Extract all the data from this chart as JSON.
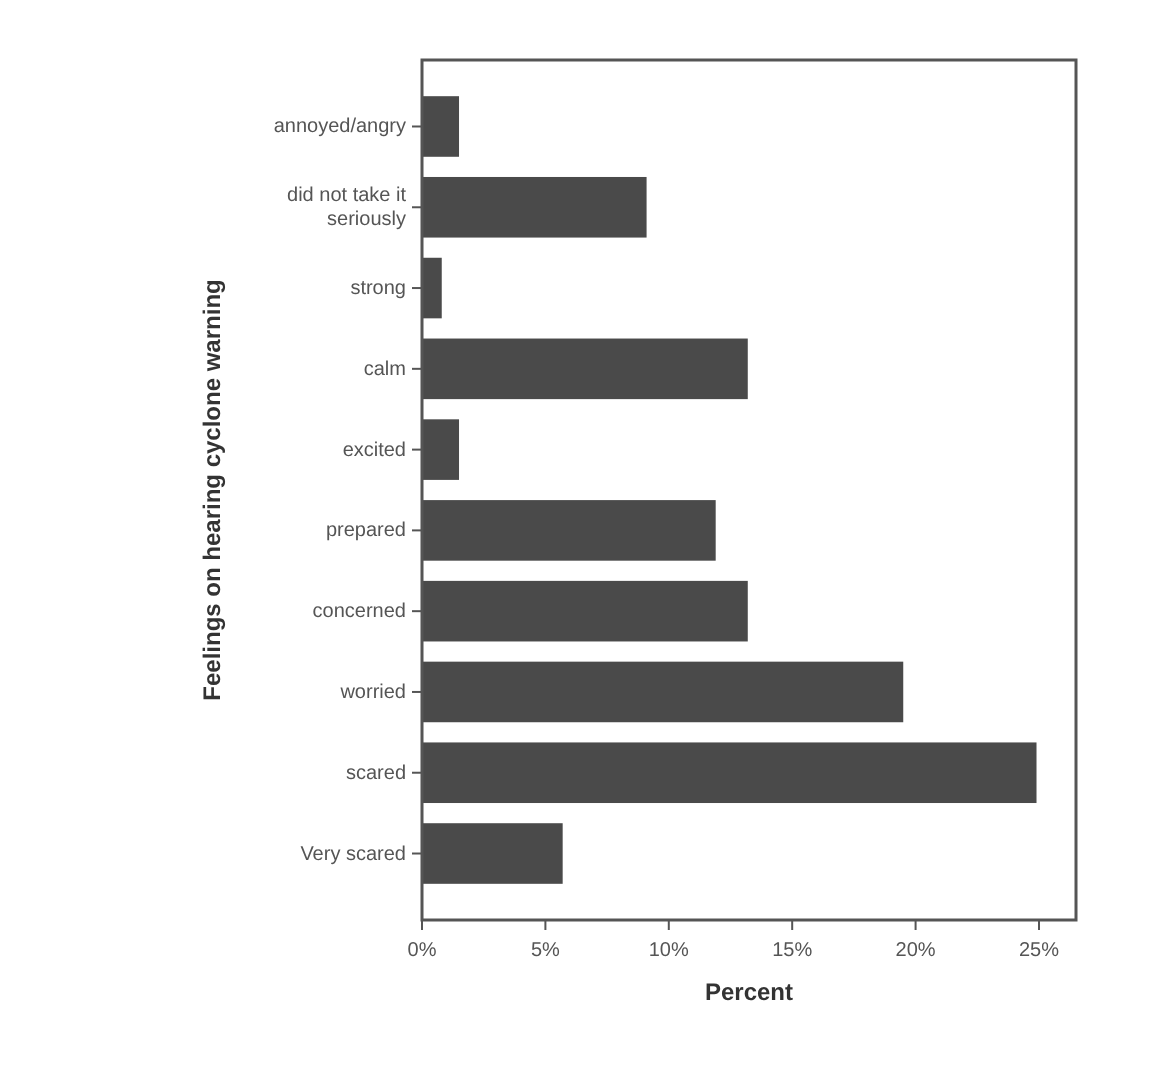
{
  "chart_data": {
    "type": "bar",
    "orientation": "horizontal",
    "xlabel": "Percent",
    "ylabel": "Feelings on hearing cyclone warning",
    "categories": [
      "annoyed/angry",
      "did not take it seriously",
      "strong",
      "calm",
      "excited",
      "prepared",
      "concerned",
      "worried",
      "scared",
      "Very scared"
    ],
    "values": [
      1.5,
      9.1,
      0.8,
      13.2,
      1.5,
      11.9,
      13.2,
      19.5,
      24.9,
      5.7
    ],
    "color": "#4a4a4a",
    "xlim": [
      0,
      26.5
    ],
    "xticks": [
      {
        "value": 0,
        "label": "0%"
      },
      {
        "value": 5,
        "label": "5%"
      },
      {
        "value": 10,
        "label": "10%"
      },
      {
        "value": 15,
        "label": "15%"
      },
      {
        "value": 20,
        "label": "20%"
      },
      {
        "value": 25,
        "label": "25%"
      }
    ],
    "grid": false
  }
}
